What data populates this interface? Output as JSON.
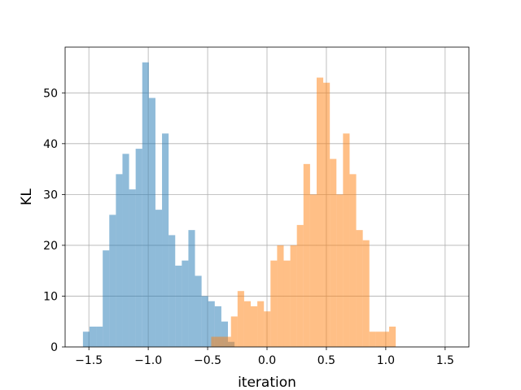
{
  "chart_data": {
    "type": "histogram",
    "xlabel": "iteration",
    "ylabel": "KL",
    "xlim": [
      -1.7,
      1.7
    ],
    "ylim": [
      0,
      59
    ],
    "xticks": [
      -1.5,
      -1.0,
      -0.5,
      0.0,
      0.5,
      1.0,
      1.5
    ],
    "xtick_labels": [
      "−1.5",
      "−1.0",
      "−0.5",
      "0.0",
      "0.5",
      "1.0",
      "1.5"
    ],
    "yticks": [
      0,
      10,
      20,
      30,
      40,
      50
    ],
    "ytick_labels": [
      "0",
      "10",
      "20",
      "30",
      "40",
      "50"
    ],
    "grid": true,
    "series": [
      {
        "color": "#1f77b4",
        "opacity": 0.5,
        "bin_start": -1.55,
        "bin_width": 0.0555,
        "counts": [
          3,
          4,
          4,
          19,
          26,
          34,
          38,
          31,
          39,
          56,
          49,
          27,
          42,
          22,
          16,
          17,
          23,
          14,
          10,
          9,
          8,
          5,
          1
        ]
      },
      {
        "color": "#ff7f0e",
        "opacity": 0.5,
        "bin_start": -0.47,
        "bin_width": 0.0555,
        "counts": [
          2,
          2,
          2,
          6,
          11,
          9,
          8,
          9,
          7,
          17,
          20,
          17,
          20,
          24,
          36,
          30,
          53,
          52,
          37,
          30,
          42,
          34,
          23,
          21,
          3,
          3,
          3,
          4
        ]
      }
    ]
  }
}
